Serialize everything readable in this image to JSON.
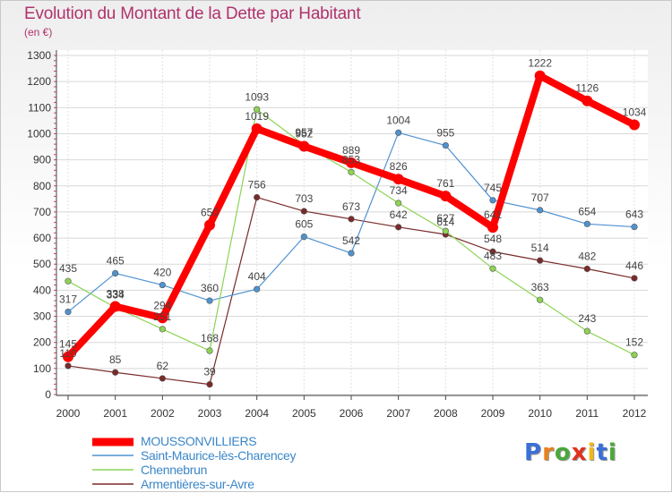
{
  "title": "Evolution du Montant de la Dette par Habitant",
  "subtitle": "(en €)",
  "logo": {
    "letters": [
      "P",
      "r",
      "o",
      "x",
      "i",
      "t",
      "i"
    ],
    "colors": [
      "#3a6fd8",
      "#e8821e",
      "#4aa83a",
      "#e0311e",
      "#f0b818",
      "#3a6fd8",
      "#4aa83a"
    ]
  },
  "chart_data": {
    "type": "line",
    "categories": [
      "2000",
      "2001",
      "2002",
      "2003",
      "2004",
      "2005",
      "2006",
      "2007",
      "2008",
      "2009",
      "2010",
      "2011",
      "2012"
    ],
    "ylim": [
      0,
      1300
    ],
    "yticks": [
      0,
      100,
      200,
      300,
      400,
      500,
      600,
      700,
      800,
      900,
      1000,
      1100,
      1200,
      1300
    ],
    "grid": true,
    "legend_position": "bottom-left",
    "series": [
      {
        "name": "MOUSSONVILLIERS",
        "color": "#ff0000",
        "values": [
          145,
          338,
          294,
          650,
          1019,
          952,
          889,
          826,
          761,
          641,
          1222,
          1126,
          1034
        ]
      },
      {
        "name": "Saint-Maurice-lès-Charencey",
        "color": "#4f92d0",
        "values": [
          317,
          465,
          420,
          360,
          404,
          605,
          542,
          1004,
          955,
          745,
          707,
          654,
          643
        ]
      },
      {
        "name": "Chennebrun",
        "color": "#8cd454",
        "values": [
          435,
          334,
          251,
          168,
          1093,
          957,
          853,
          734,
          627,
          483,
          363,
          243,
          152
        ]
      },
      {
        "name": "Armentières-sur-Avre",
        "color": "#7a2a2a",
        "values": [
          110,
          85,
          62,
          39,
          756,
          703,
          673,
          642,
          614,
          548,
          514,
          482,
          446
        ]
      }
    ]
  }
}
